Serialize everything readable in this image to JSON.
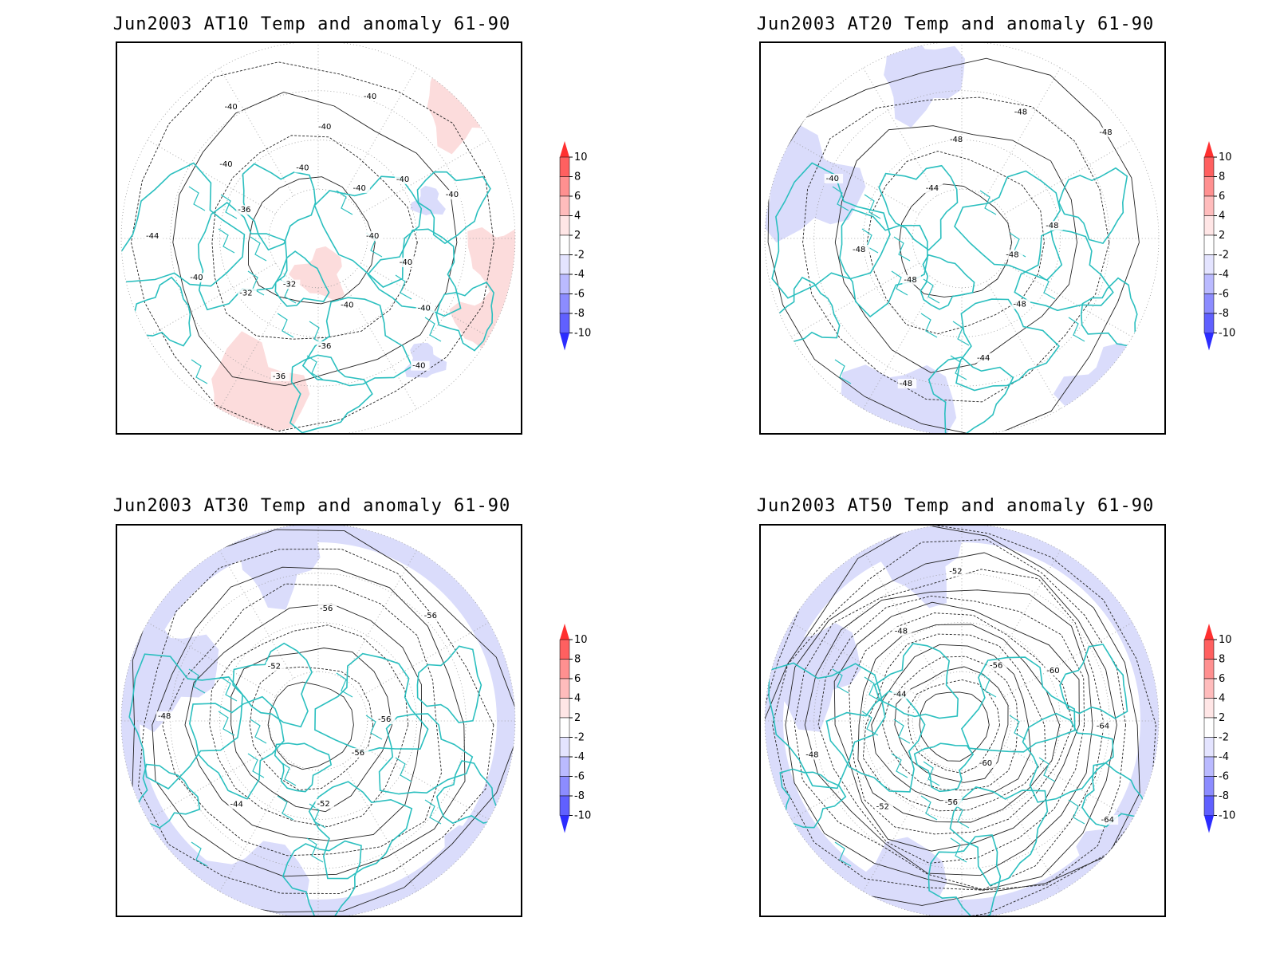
{
  "colors": {
    "coast": "#2bbfbf",
    "contour": "#222222",
    "grid": "#999999",
    "anom_pos_weak": "#fcdcdc",
    "anom_neg_weak": "#dadcfb"
  },
  "colorbar": {
    "levels": [
      "10",
      "8",
      "6",
      "4",
      "2",
      "-2",
      "-4",
      "-6",
      "-8",
      "-10"
    ],
    "colors": [
      "#ff3030",
      "#ff6060",
      "#ff9090",
      "#ffbcbc",
      "#ffe6e6",
      "#ffffff",
      "#e4e4ff",
      "#babaff",
      "#8c8cff",
      "#6060ff",
      "#2c2cff"
    ]
  },
  "panels": [
    {
      "title": "Jun2003 AT10 Temp and anomaly 61-90",
      "contour_labels": [
        "-40",
        "-40",
        "-40",
        "-40",
        "-40",
        "-36",
        "-36",
        "-32",
        "-32",
        "-40",
        "-44",
        "-36",
        "-40",
        "-40",
        "-40",
        "-40",
        "-40",
        "-40",
        "-40",
        "-40"
      ],
      "anomaly_sign": "positive",
      "ring_count": 4
    },
    {
      "title": "Jun2003 AT20 Temp and anomaly 61-90",
      "contour_labels": [
        "-48",
        "-48",
        "-44",
        "-48",
        "-48",
        "-48",
        "-40",
        "-44",
        "-48",
        "-48",
        "-48",
        "-48"
      ],
      "anomaly_sign": "negative",
      "ring_count": 5
    },
    {
      "title": "Jun2003 AT30 Temp and anomaly 61-90",
      "contour_labels": [
        "-56",
        "-52",
        "-44",
        "-48",
        "-52",
        "-56",
        "-56",
        "-56"
      ],
      "anomaly_sign": "negative",
      "ring_count": 9
    },
    {
      "title": "Jun2003 AT50 Temp and anomaly 61-90",
      "contour_labels": [
        "-60",
        "-56",
        "-52",
        "-48",
        "-44",
        "-48",
        "-52",
        "-56",
        "-60",
        "-64",
        "-64"
      ],
      "anomaly_sign": "negative",
      "ring_count": 16
    }
  ]
}
